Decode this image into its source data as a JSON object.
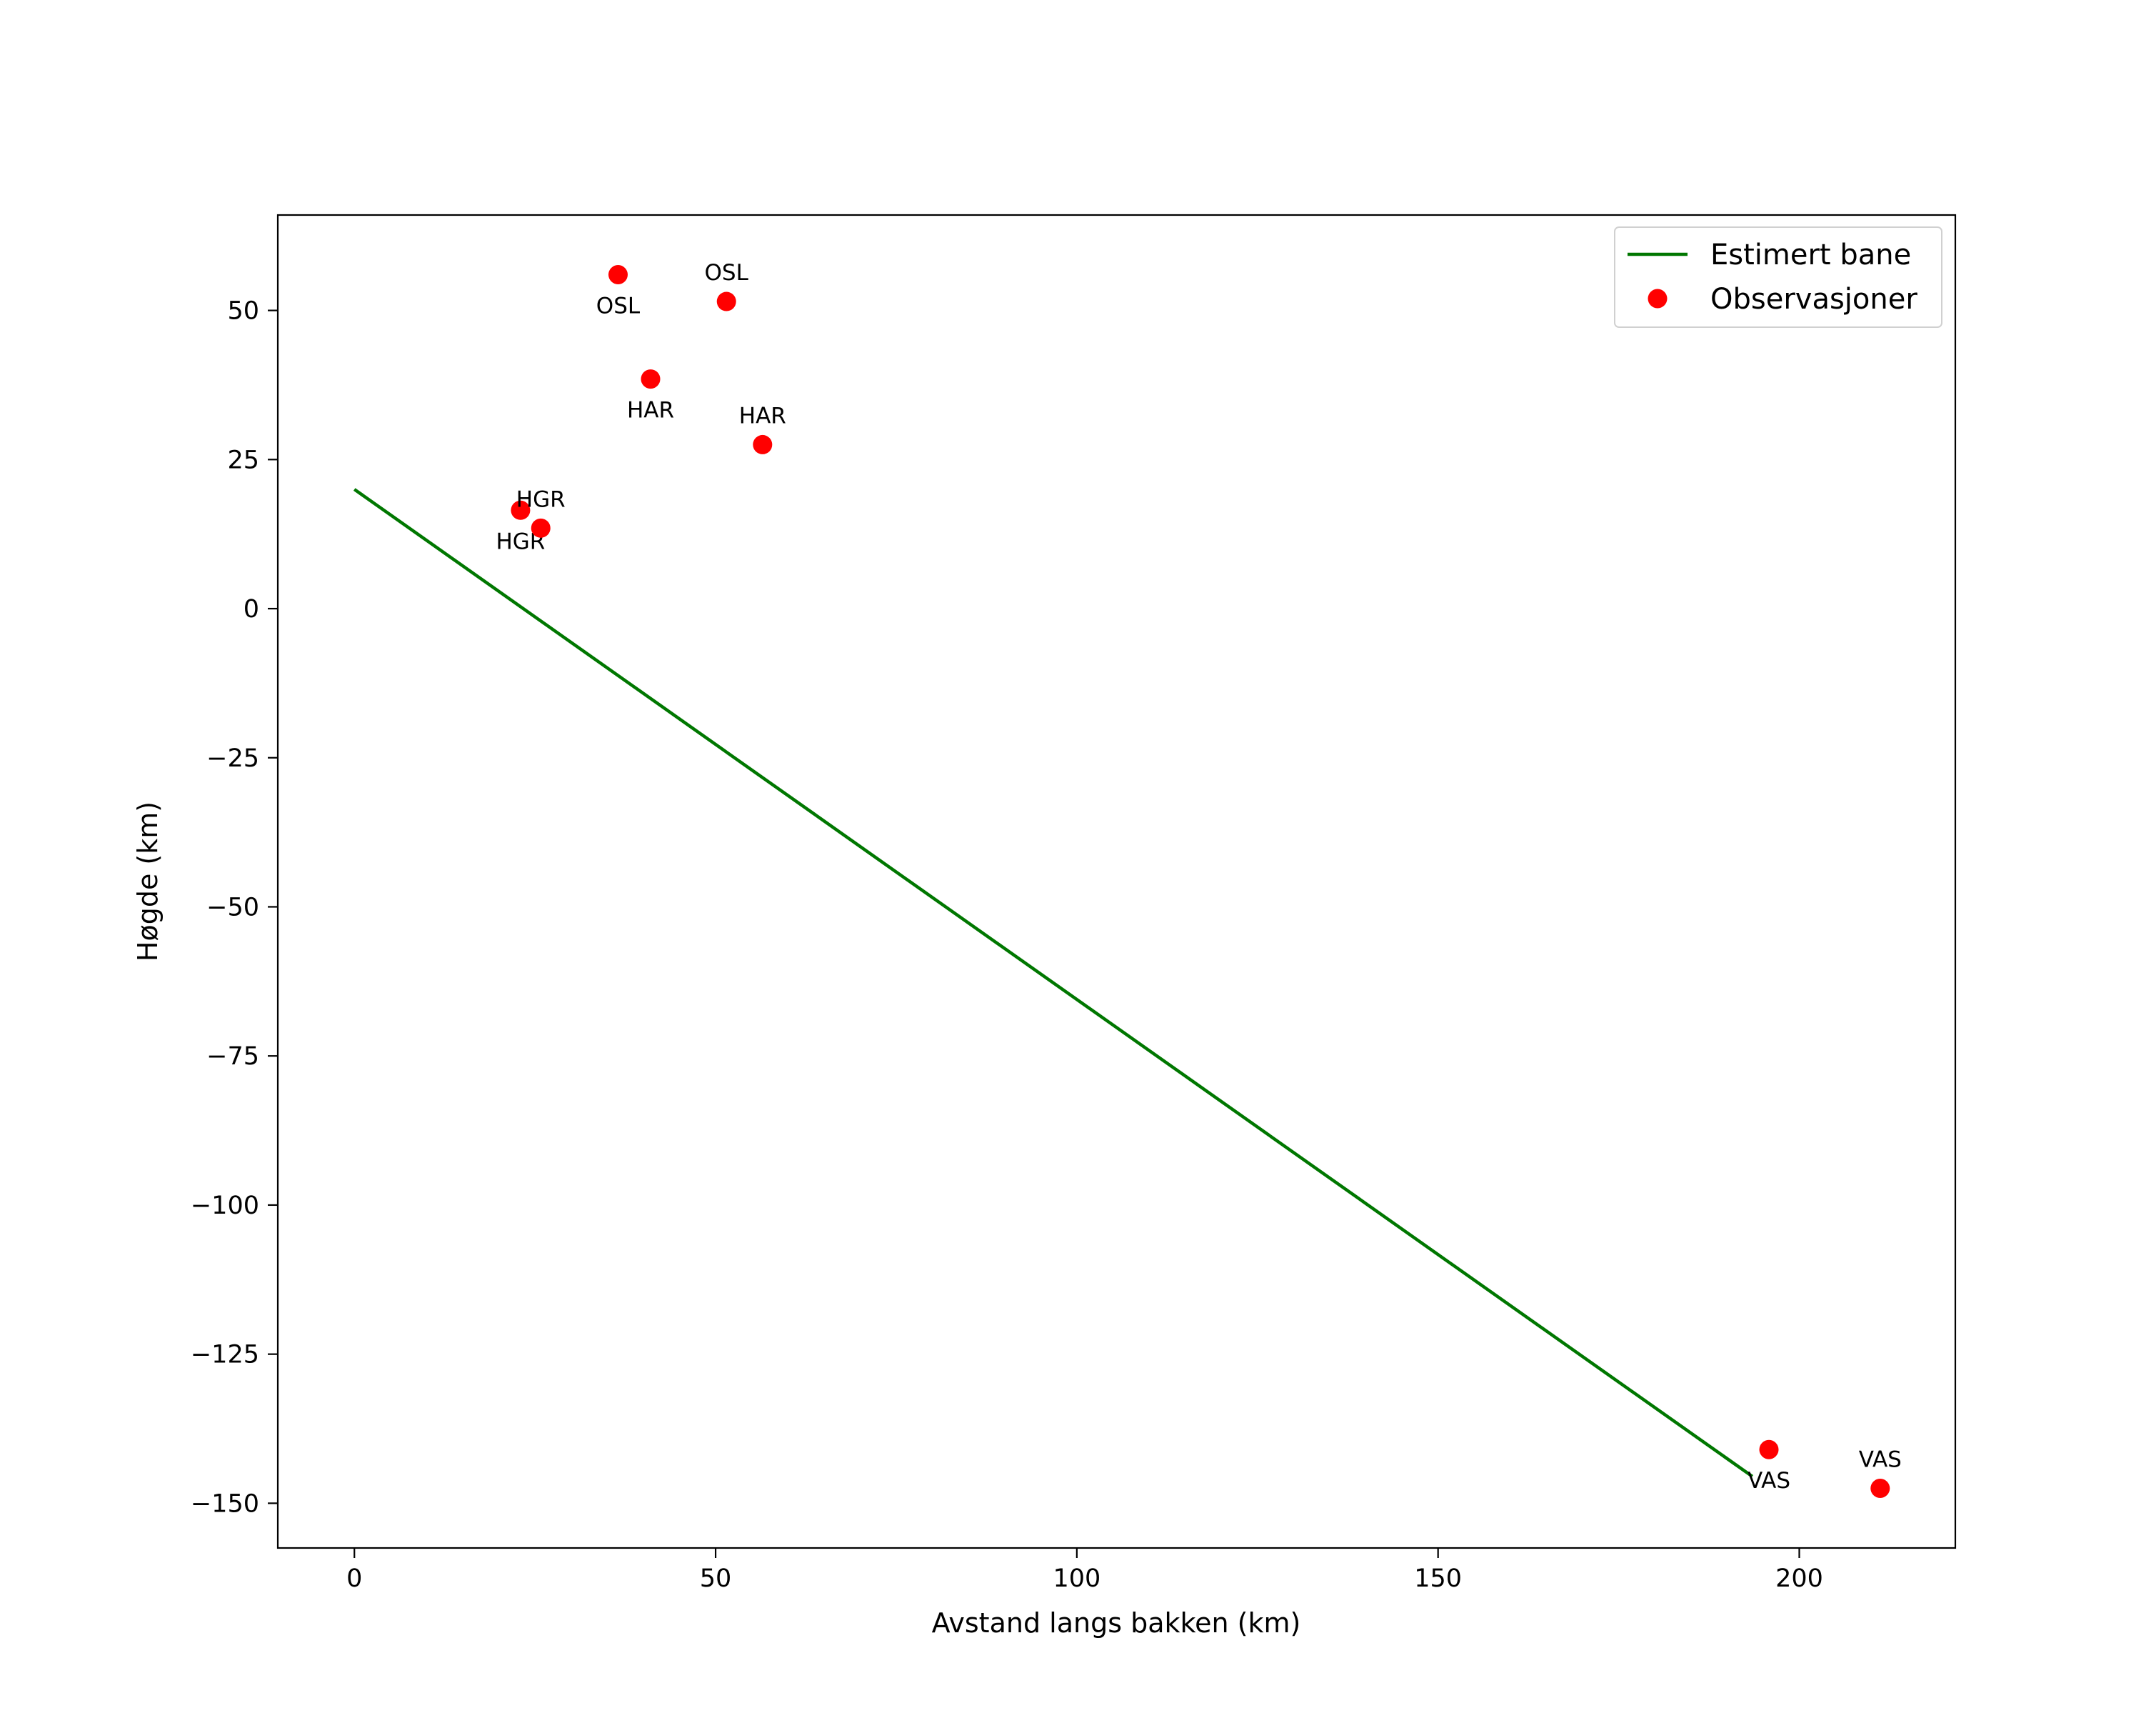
{
  "chart_data": {
    "type": "scatter",
    "title": "",
    "xlabel": "Avstand langs bakken (km)",
    "ylabel": "Høgde (km)",
    "xlim": [
      -10.6,
      221.6
    ],
    "ylim": [
      -157.5,
      66
    ],
    "xticks": [
      0,
      50,
      100,
      150,
      200
    ],
    "yticks": [
      -150,
      -125,
      -100,
      -75,
      -50,
      -25,
      0,
      25,
      50
    ],
    "xtick_labels": [
      "0",
      "50",
      "100",
      "150",
      "200"
    ],
    "ytick_labels": [
      "−150",
      "−125",
      "−100",
      "−75",
      "−50",
      "−25",
      "0",
      "25",
      "50"
    ],
    "grid": false,
    "legend_position": "top-right",
    "colors": {
      "line": "#007700",
      "points": "#ff0000"
    },
    "series": [
      {
        "name": "Estimert bane",
        "kind": "line",
        "x": [
          0,
          193.5
        ],
        "y": [
          20,
          -145.5
        ]
      },
      {
        "name": "Observasjoner",
        "kind": "scatter",
        "points": [
          {
            "x": 36.5,
            "y": 56,
            "label": "OSL",
            "label_pos": "below"
          },
          {
            "x": 51.5,
            "y": 51.5,
            "label": "OSL",
            "label_pos": "above"
          },
          {
            "x": 41,
            "y": 38.5,
            "label": "HAR",
            "label_pos": "below"
          },
          {
            "x": 56.5,
            "y": 27.5,
            "label": "HAR",
            "label_pos": "above"
          },
          {
            "x": 23,
            "y": 16.5,
            "label": "HGR",
            "label_pos": "below"
          },
          {
            "x": 25.8,
            "y": 13.5,
            "label": "HGR",
            "label_pos": "above"
          },
          {
            "x": 195.8,
            "y": -141,
            "label": "VAS",
            "label_pos": "below"
          },
          {
            "x": 211.2,
            "y": -147.5,
            "label": "VAS",
            "label_pos": "above"
          }
        ]
      }
    ]
  }
}
